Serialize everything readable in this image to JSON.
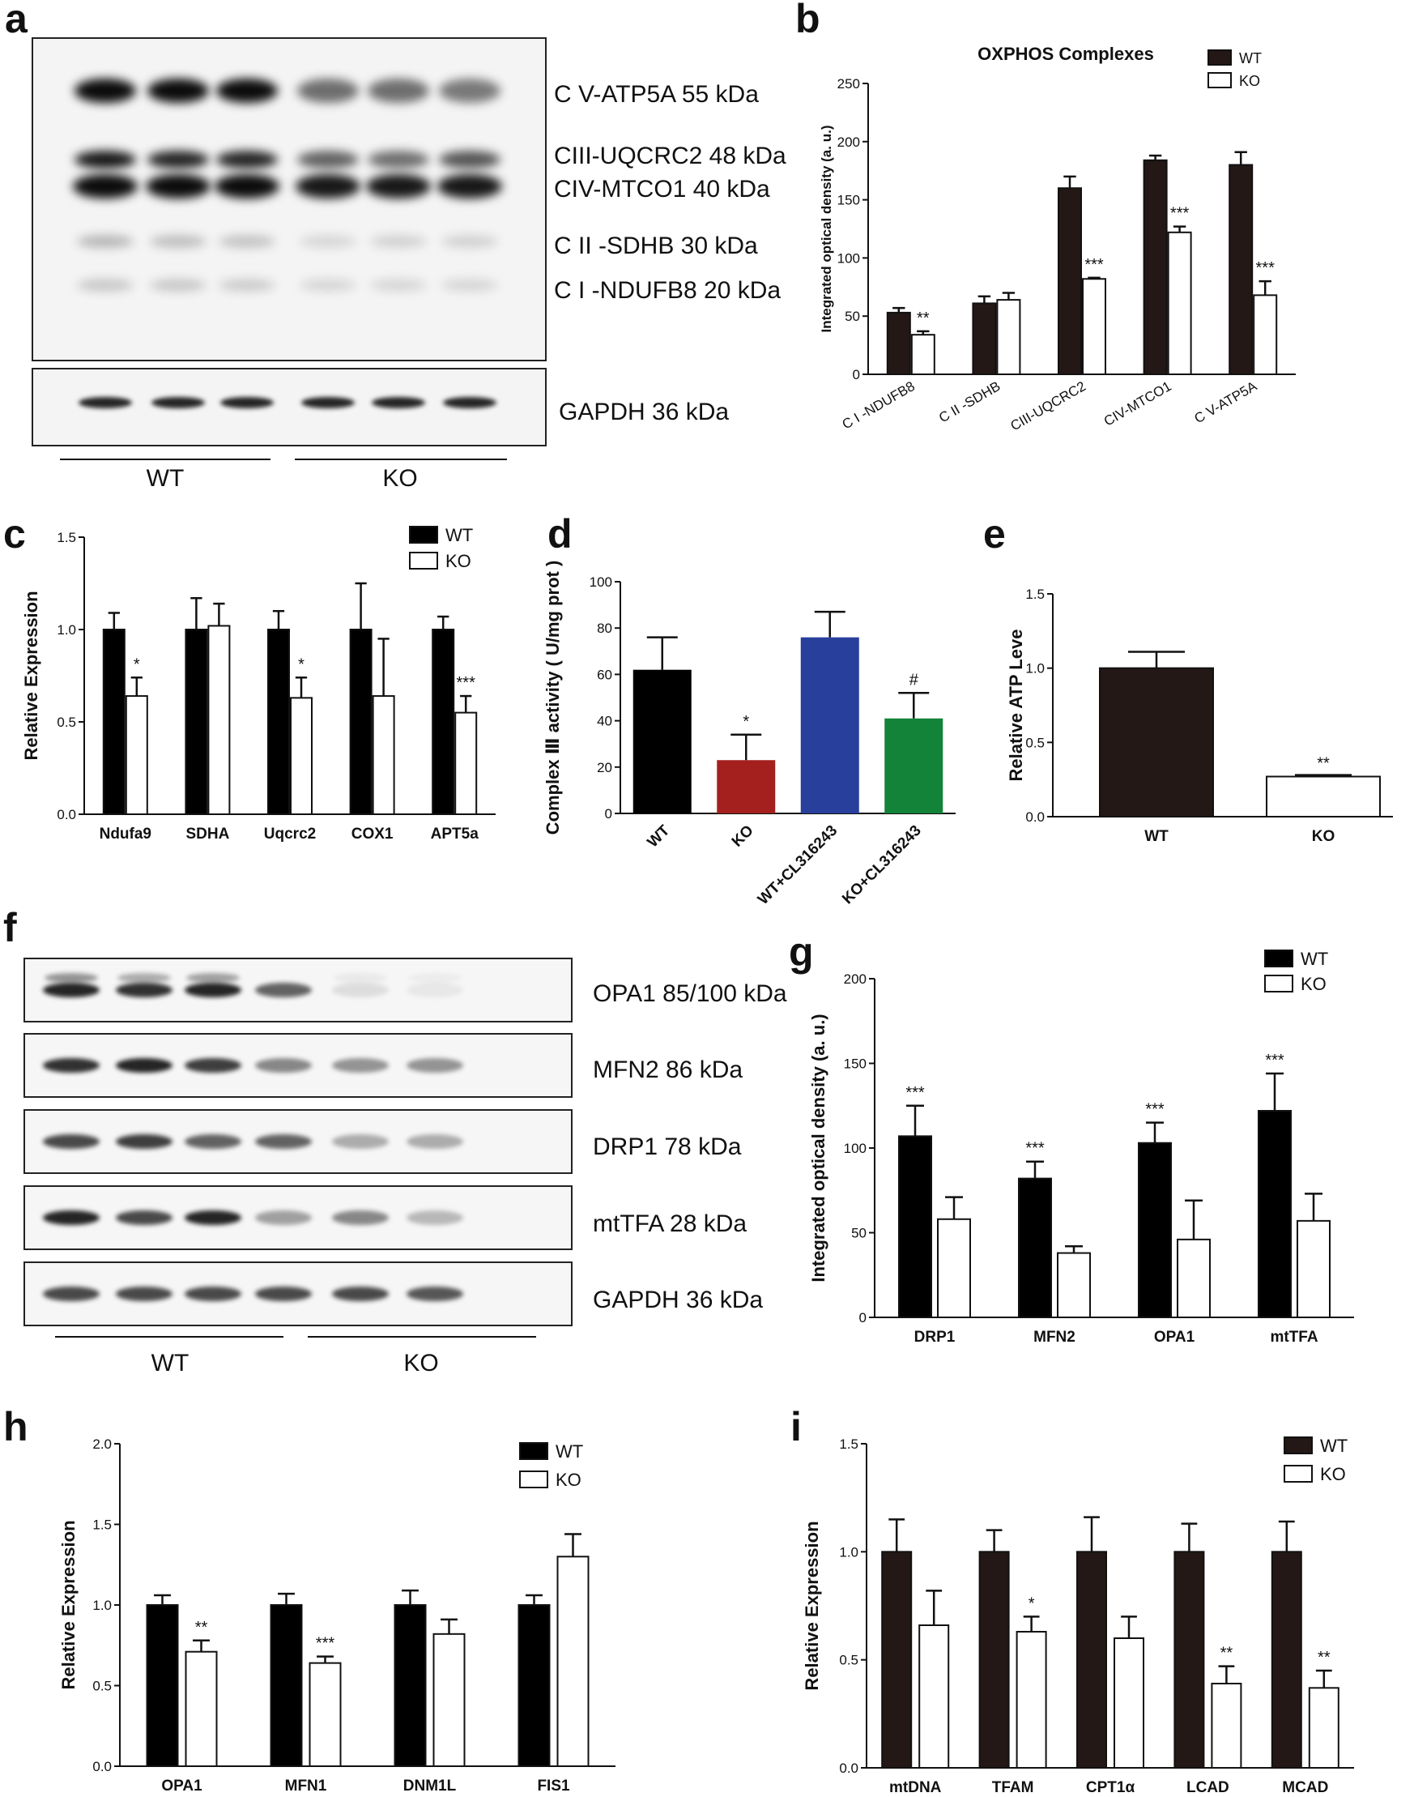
{
  "panels": {
    "a": {
      "letter": "a",
      "bands": [
        "C V-ATP5A 55 kDa",
        "CIII-UQCRC2 48 kDa",
        "CIV-MTCO1 40 kDa",
        "C II -SDHB 30 kDa",
        "C I -NDUFB8 20 kDa"
      ],
      "loading": "GAPDH 36 kDa",
      "groups": [
        "WT",
        "KO"
      ]
    },
    "f": {
      "letter": "f",
      "bands": [
        "OPA1 85/100 kDa",
        "MFN2 86 kDa",
        "DRP1 78 kDa",
        "mtTFA 28 kDa",
        "GAPDH 36 kDa"
      ],
      "groups": [
        "WT",
        "KO"
      ]
    }
  },
  "colors": {
    "wt_dark": "#231815",
    "ko": "#ffffff",
    "wt_black": "#000000",
    "d_wt": "#000000",
    "d_ko": "#a3201f",
    "d_wt_cl": "#283f9b",
    "d_ko_cl": "#138339"
  },
  "chart_data": [
    {
      "panel": "b",
      "type": "bar",
      "title": "OXPHOS Complexes",
      "ylabel": "Integrated optical density (a. u.)",
      "xlabel": "",
      "ylim": [
        0,
        250
      ],
      "yticks": [
        0,
        50,
        100,
        150,
        200,
        250
      ],
      "categories": [
        "C I -NDUFB8",
        "C II -SDHB",
        "CIII-UQCRC2",
        "CIV-MTCO1",
        "C V-ATP5A"
      ],
      "series": [
        {
          "name": "WT",
          "values": [
            53,
            61,
            160,
            184,
            180
          ],
          "errors": [
            4,
            6,
            10,
            4,
            11
          ]
        },
        {
          "name": "KO",
          "values": [
            34,
            64,
            82,
            122,
            68
          ],
          "errors": [
            3,
            6,
            1,
            5,
            12
          ]
        }
      ],
      "significance": [
        "**",
        "",
        "***",
        "***",
        "***"
      ],
      "legend": "top-right"
    },
    {
      "panel": "c",
      "type": "bar",
      "ylabel": "Relative Expression",
      "xlabel": "",
      "ylim": [
        0,
        1.5
      ],
      "yticks": [
        "0.0",
        "0.5",
        "1.0",
        "1.5"
      ],
      "categories": [
        "Ndufa9",
        "SDHA",
        "Uqcrc2",
        "COX1",
        "APT5a"
      ],
      "series": [
        {
          "name": "WT",
          "values": [
            1.0,
            1.0,
            1.0,
            1.0,
            1.0
          ],
          "errors": [
            0.09,
            0.17,
            0.1,
            0.25,
            0.07
          ]
        },
        {
          "name": "KO",
          "values": [
            0.64,
            1.02,
            0.63,
            0.64,
            0.55
          ],
          "errors": [
            0.1,
            0.12,
            0.11,
            0.31,
            0.09
          ]
        }
      ],
      "significance": [
        "*",
        "",
        "*",
        "",
        "***"
      ],
      "legend": "top-right"
    },
    {
      "panel": "d",
      "type": "bar",
      "ylabel": "Complex Ⅲ activity ( U/mg prot )",
      "xlabel": "",
      "ylim": [
        0,
        100
      ],
      "yticks": [
        0,
        20,
        40,
        60,
        80,
        100
      ],
      "categories": [
        "WT",
        "KO",
        "WT+CL316243",
        "KO+CL316243"
      ],
      "values": [
        62,
        23,
        76,
        41
      ],
      "errors": [
        14,
        11,
        11,
        11
      ],
      "significance": [
        "",
        "*",
        "",
        "#"
      ]
    },
    {
      "panel": "e",
      "type": "bar",
      "ylabel": "Relative ATP Leve",
      "xlabel": "",
      "ylim": [
        0,
        1.5
      ],
      "yticks": [
        "0.0",
        "0.5",
        "1.0",
        "1.5"
      ],
      "categories": [
        "WT",
        "KO"
      ],
      "values": [
        1.0,
        0.27
      ],
      "errors": [
        0.11,
        0.01
      ],
      "significance": [
        "",
        "**"
      ]
    },
    {
      "panel": "g",
      "type": "bar",
      "ylabel": "Integrated optical density (a. u.)",
      "xlabel": "",
      "ylim": [
        0,
        200
      ],
      "yticks": [
        0,
        50,
        100,
        150,
        200
      ],
      "categories": [
        "DRP1",
        "MFN2",
        "OPA1",
        "mtTFA"
      ],
      "series": [
        {
          "name": "WT",
          "values": [
            107,
            82,
            103,
            122
          ],
          "errors": [
            18,
            10,
            12,
            22
          ]
        },
        {
          "name": "KO",
          "values": [
            58,
            38,
            46,
            57
          ],
          "errors": [
            13,
            4,
            23,
            16
          ]
        }
      ],
      "significance": [
        "***",
        "***",
        "***",
        "***"
      ],
      "legend": "top-right"
    },
    {
      "panel": "h",
      "type": "bar",
      "ylabel": "Relative Expression",
      "xlabel": "",
      "ylim": [
        0,
        2.0
      ],
      "yticks": [
        "0.0",
        "0.5",
        "1.0",
        "1.5",
        "2.0"
      ],
      "categories": [
        "OPA1",
        "MFN1",
        "DNM1L",
        "FIS1"
      ],
      "series": [
        {
          "name": "WT",
          "values": [
            1.0,
            1.0,
            1.0,
            1.0
          ],
          "errors": [
            0.06,
            0.07,
            0.09,
            0.06
          ]
        },
        {
          "name": "KO",
          "values": [
            0.71,
            0.64,
            0.82,
            1.3
          ],
          "errors": [
            0.07,
            0.04,
            0.09,
            0.14
          ]
        }
      ],
      "significance": [
        "**",
        "***",
        "",
        ""
      ],
      "legend": "top-right"
    },
    {
      "panel": "i",
      "type": "bar",
      "ylabel": "Relative Expression",
      "xlabel": "",
      "ylim": [
        0,
        1.5
      ],
      "yticks": [
        "0.0",
        "0.5",
        "1.0",
        "1.5"
      ],
      "categories": [
        "mtDNA",
        "TFAM",
        "CPT1α",
        "LCAD",
        "MCAD"
      ],
      "series": [
        {
          "name": "WT",
          "values": [
            1.0,
            1.0,
            1.0,
            1.0,
            1.0
          ],
          "errors": [
            0.15,
            0.1,
            0.16,
            0.13,
            0.14
          ]
        },
        {
          "name": "KO",
          "values": [
            0.66,
            0.63,
            0.6,
            0.39,
            0.37
          ],
          "errors": [
            0.16,
            0.07,
            0.1,
            0.08,
            0.08
          ]
        }
      ],
      "significance": [
        "",
        "*",
        "",
        "**",
        "**"
      ],
      "legend": "top-right"
    }
  ]
}
